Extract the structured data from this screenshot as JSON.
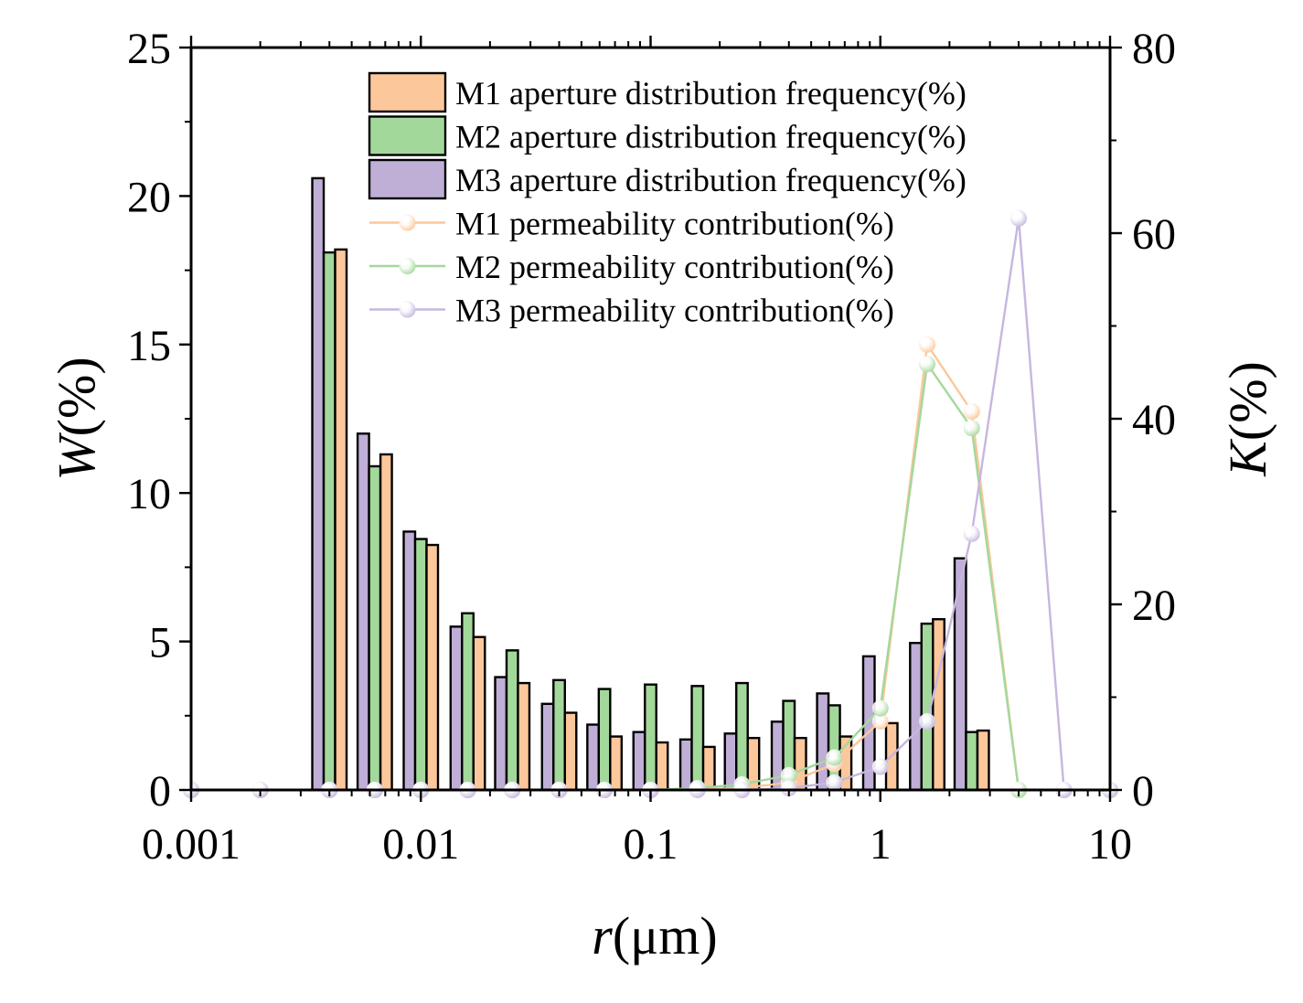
{
  "chart_data": {
    "type": "bar",
    "xlabel_var": "r",
    "xlabel_unit": "(μm)",
    "ylabel_left_var": "W",
    "ylabel_left_unit": "(%)",
    "ylabel_right_var": "K",
    "ylabel_right_unit": "(%)",
    "x_scale": "log",
    "xlim": [
      0.001,
      10
    ],
    "x_ticks": [
      {
        "value": 0.001,
        "label": "0.001"
      },
      {
        "value": 0.01,
        "label": "0.01"
      },
      {
        "value": 0.1,
        "label": "0.1"
      },
      {
        "value": 1,
        "label": "1"
      },
      {
        "value": 10,
        "label": "10"
      }
    ],
    "ylim_left": [
      0,
      25
    ],
    "y_ticks_left": [
      {
        "value": 0,
        "label": "0"
      },
      {
        "value": 5,
        "label": "5"
      },
      {
        "value": 10,
        "label": "10"
      },
      {
        "value": 15,
        "label": "15"
      },
      {
        "value": 20,
        "label": "20"
      },
      {
        "value": 25,
        "label": "25"
      }
    ],
    "ylim_right": [
      0,
      80
    ],
    "y_ticks_right": [
      {
        "value": 0,
        "label": "0"
      },
      {
        "value": 20,
        "label": "20"
      },
      {
        "value": 40,
        "label": "40"
      },
      {
        "value": 60,
        "label": "60"
      },
      {
        "value": 80,
        "label": "80"
      }
    ],
    "grid": false,
    "legend_position": "top-center",
    "bins": [
      0.004,
      0.0063,
      0.01,
      0.016,
      0.025,
      0.04,
      0.063,
      0.1,
      0.16,
      0.25,
      0.4,
      0.63,
      1,
      1.6,
      2.5
    ],
    "bar_series": [
      {
        "name": "M3 aperture distribution frequency(%)",
        "color": "#bfaed6",
        "values": [
          20.6,
          12.0,
          8.7,
          5.5,
          3.8,
          2.9,
          2.2,
          1.95,
          1.7,
          1.9,
          2.3,
          3.25,
          4.5,
          4.95,
          7.8
        ]
      },
      {
        "name": "M2 aperture distribution frequency(%)",
        "color": "#a3d89b",
        "values": [
          18.1,
          10.9,
          8.45,
          5.95,
          4.7,
          3.7,
          3.4,
          3.55,
          3.5,
          3.6,
          3.0,
          2.85,
          0.0,
          5.6,
          1.95
        ]
      },
      {
        "name": "M1 aperture distribution frequency(%)",
        "color": "#fcc79a",
        "values": [
          18.2,
          11.3,
          8.25,
          5.15,
          3.6,
          2.6,
          1.8,
          1.6,
          1.45,
          1.75,
          1.75,
          1.8,
          2.25,
          5.75,
          2.0
        ]
      }
    ],
    "line_series": [
      {
        "name": "M1 permeability contribution(%)",
        "color": "#fcc79a",
        "x": [
          0.001,
          0.002,
          0.004,
          0.0063,
          0.01,
          0.016,
          0.025,
          0.04,
          0.063,
          0.1,
          0.16,
          0.25,
          0.4,
          0.63,
          1,
          1.6,
          2.5,
          4,
          6.3,
          10
        ],
        "y": [
          0,
          0,
          0,
          0,
          0,
          0,
          0,
          0,
          0,
          0,
          0.1,
          0.2,
          0.8,
          2.8,
          7.4,
          48.0,
          40.8,
          0,
          0,
          0
        ]
      },
      {
        "name": "M2 permeability contribution(%)",
        "color": "#a3d89b",
        "x": [
          0.001,
          0.002,
          0.004,
          0.0063,
          0.01,
          0.016,
          0.025,
          0.04,
          0.063,
          0.1,
          0.16,
          0.25,
          0.4,
          0.63,
          1,
          1.6,
          2.5,
          4,
          6.3,
          10
        ],
        "y": [
          0,
          0,
          0,
          0,
          0,
          0,
          0,
          0,
          0,
          0,
          0.2,
          0.6,
          1.6,
          3.5,
          8.8,
          45.9,
          39.0,
          0,
          0,
          0
        ]
      },
      {
        "name": "M3 permeability contribution(%)",
        "color": "#c6b7df",
        "x": [
          0.001,
          0.002,
          0.004,
          0.0063,
          0.01,
          0.016,
          0.025,
          0.04,
          0.063,
          0.1,
          0.16,
          0.25,
          0.4,
          0.63,
          1,
          1.6,
          2.5,
          4,
          6.3,
          10
        ],
        "y": [
          0,
          0,
          0,
          0,
          0,
          0,
          0,
          0,
          0,
          0,
          0,
          0,
          0.2,
          0.8,
          2.5,
          7.4,
          27.6,
          61.6,
          0,
          0
        ]
      }
    ],
    "legend_order": [
      "M1 aperture distribution frequency(%)",
      "M2 aperture distribution frequency(%)",
      "M3 aperture distribution frequency(%)",
      "M1 permeability contribution(%)",
      "M2 permeability contribution(%)",
      "M3 permeability contribution(%)"
    ]
  }
}
